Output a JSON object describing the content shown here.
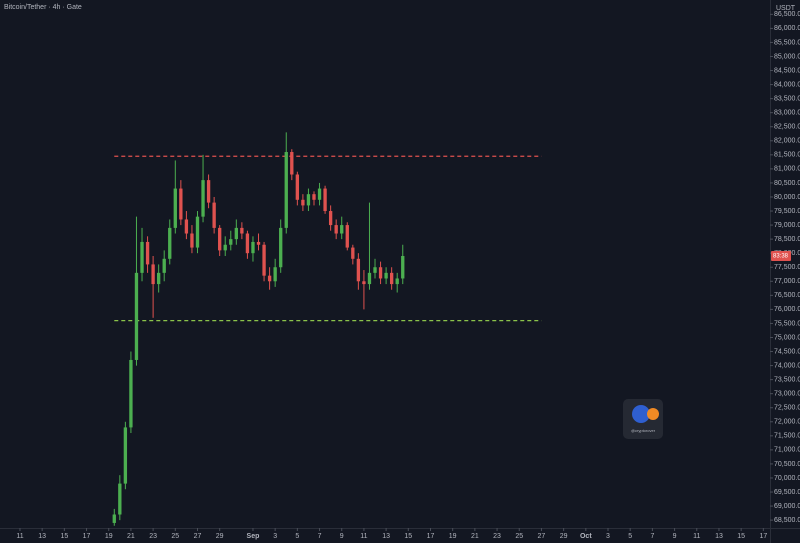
{
  "chart_data": {
    "type": "candlestick",
    "title": "Bitcoin/Tether · 4h · Gate",
    "y_axis_unit": "USDT",
    "price_tag": "83:38",
    "watermark": "@cryptorover",
    "up_color": "#4caf50",
    "down_color": "#e0524f",
    "x": [
      19.5,
      20,
      20.5,
      21,
      21.5,
      22,
      22.5,
      23,
      23.5,
      24,
      24.5,
      25,
      25.5,
      26,
      26.5,
      27,
      27.5,
      28,
      28.5,
      29,
      29.5,
      30,
      30.5,
      31,
      31.5,
      32,
      32.5,
      33,
      33.5,
      34,
      34.5,
      35,
      35.5,
      36,
      36.5,
      37,
      37.5,
      38,
      38.5,
      39,
      39.5,
      40,
      40.5,
      41,
      41.5,
      42,
      42.5,
      43,
      43.5,
      44,
      44.5,
      45,
      45.5
    ],
    "open": [
      68400,
      68700,
      69800,
      71800,
      74200,
      77300,
      78400,
      77600,
      76900,
      77300,
      77800,
      78900,
      80300,
      79200,
      78700,
      78200,
      79300,
      80600,
      79800,
      78900,
      78100,
      78300,
      78500,
      78900,
      78700,
      78000,
      78400,
      78300,
      77200,
      77000,
      77500,
      78900,
      81600,
      80800,
      79900,
      79700,
      80100,
      79900,
      80300,
      79500,
      79000,
      78700,
      79000,
      78200,
      77800,
      77000,
      76900,
      77300,
      77500,
      77100,
      77300,
      76900,
      77100
    ],
    "high": [
      68900,
      70100,
      72000,
      74500,
      79300,
      78900,
      78600,
      77900,
      77600,
      78100,
      79200,
      81300,
      80600,
      79500,
      79000,
      79500,
      81500,
      80800,
      80000,
      79000,
      78600,
      78800,
      79200,
      79100,
      78800,
      78600,
      78700,
      78400,
      77500,
      77800,
      79200,
      82300,
      81700,
      80900,
      80100,
      80300,
      80200,
      80500,
      80400,
      79700,
      79200,
      79300,
      79100,
      78300,
      78000,
      77400,
      79800,
      77800,
      77700,
      77500,
      77500,
      77300,
      78300
    ],
    "low": [
      68300,
      68500,
      69600,
      71600,
      74000,
      77000,
      77300,
      75700,
      76600,
      77000,
      77600,
      78700,
      79000,
      78500,
      78000,
      78000,
      79100,
      79600,
      78700,
      77900,
      77900,
      78100,
      78300,
      78500,
      77800,
      77700,
      78100,
      77000,
      76700,
      76800,
      77300,
      78700,
      80600,
      79700,
      79500,
      79500,
      79700,
      79700,
      79400,
      78800,
      78500,
      78500,
      78100,
      77600,
      76700,
      76000,
      76700,
      77100,
      76900,
      76900,
      76700,
      76600,
      76900
    ],
    "close": [
      68700,
      69800,
      71800,
      74200,
      77300,
      78400,
      77600,
      76900,
      77300,
      77800,
      78900,
      80300,
      79200,
      78700,
      78200,
      79300,
      80600,
      79800,
      78900,
      78100,
      78300,
      78500,
      78900,
      78700,
      78000,
      78400,
      78300,
      77200,
      77000,
      77500,
      78900,
      81600,
      80800,
      79900,
      79700,
      80100,
      79900,
      80300,
      79500,
      79000,
      78700,
      79000,
      78200,
      77800,
      77000,
      76900,
      77300,
      77500,
      77100,
      77300,
      76900,
      77100,
      77900
    ],
    "levels": [
      {
        "value": 81450,
        "color": "#e0524f",
        "x_range": [
          19.5,
          58
        ]
      },
      {
        "value": 75600,
        "color": "#8bc34a",
        "x_range": [
          19.5,
          58
        ]
      }
    ],
    "xlim": [
      9.2,
      78.6
    ],
    "xticks": [
      {
        "value": 11,
        "label": "11"
      },
      {
        "value": 13,
        "label": "13"
      },
      {
        "value": 15,
        "label": "15"
      },
      {
        "value": 17,
        "label": "17"
      },
      {
        "value": 19,
        "label": "19"
      },
      {
        "value": 21,
        "label": "21"
      },
      {
        "value": 23,
        "label": "23"
      },
      {
        "value": 25,
        "label": "25"
      },
      {
        "value": 27,
        "label": "27"
      },
      {
        "value": 29,
        "label": "29"
      },
      {
        "value": 32,
        "label": "Sep"
      },
      {
        "value": 34,
        "label": "3"
      },
      {
        "value": 36,
        "label": "5"
      },
      {
        "value": 38,
        "label": "7"
      },
      {
        "value": 40,
        "label": "9"
      },
      {
        "value": 42,
        "label": "11"
      },
      {
        "value": 44,
        "label": "13"
      },
      {
        "value": 46,
        "label": "15"
      },
      {
        "value": 48,
        "label": "17"
      },
      {
        "value": 50,
        "label": "19"
      },
      {
        "value": 52,
        "label": "21"
      },
      {
        "value": 54,
        "label": "23"
      },
      {
        "value": 56,
        "label": "25"
      },
      {
        "value": 58,
        "label": "27"
      },
      {
        "value": 60,
        "label": "29"
      },
      {
        "value": 62,
        "label": "Oct"
      },
      {
        "value": 64,
        "label": "3"
      },
      {
        "value": 66,
        "label": "5"
      },
      {
        "value": 68,
        "label": "7"
      },
      {
        "value": 70,
        "label": "9"
      },
      {
        "value": 72,
        "label": "11"
      },
      {
        "value": 74,
        "label": "13"
      },
      {
        "value": 76,
        "label": "15"
      },
      {
        "value": 78,
        "label": "17"
      }
    ],
    "ylim": [
      68220,
      87010
    ],
    "yticks": [
      {
        "value": 68500,
        "label": "68,500.0"
      },
      {
        "value": 69000,
        "label": "69,000.0"
      },
      {
        "value": 69500,
        "label": "69,500.0"
      },
      {
        "value": 70000,
        "label": "70,000.0"
      },
      {
        "value": 70500,
        "label": "70,500.0"
      },
      {
        "value": 71000,
        "label": "71,000.0"
      },
      {
        "value": 71500,
        "label": "71,500.0"
      },
      {
        "value": 72000,
        "label": "72,000.0"
      },
      {
        "value": 72500,
        "label": "72,500.0"
      },
      {
        "value": 73000,
        "label": "73,000.0"
      },
      {
        "value": 73500,
        "label": "73,500.0"
      },
      {
        "value": 74000,
        "label": "74,000.0"
      },
      {
        "value": 74500,
        "label": "74,500.0"
      },
      {
        "value": 75000,
        "label": "75,000.0"
      },
      {
        "value": 75500,
        "label": "75,500.0"
      },
      {
        "value": 76000,
        "label": "76,000.0"
      },
      {
        "value": 76500,
        "label": "76,500.0"
      },
      {
        "value": 77000,
        "label": "77,000.0"
      },
      {
        "value": 77500,
        "label": "77,500.0"
      },
      {
        "value": 78000,
        "label": "78,000.0"
      },
      {
        "value": 78500,
        "label": "78,500.0"
      },
      {
        "value": 79000,
        "label": "79,000.0"
      },
      {
        "value": 79500,
        "label": "79,500.0"
      },
      {
        "value": 80000,
        "label": "80,000.0"
      },
      {
        "value": 80500,
        "label": "80,500.0"
      },
      {
        "value": 81000,
        "label": "81,000.0"
      },
      {
        "value": 81500,
        "label": "81,500.0"
      },
      {
        "value": 82000,
        "label": "82,000.0"
      },
      {
        "value": 82500,
        "label": "82,500.0"
      },
      {
        "value": 83000,
        "label": "83,000.0"
      },
      {
        "value": 83500,
        "label": "83,500.0"
      },
      {
        "value": 84000,
        "label": "84,000.0"
      },
      {
        "value": 84500,
        "label": "84,500.0"
      },
      {
        "value": 85000,
        "label": "85,000.0"
      },
      {
        "value": 85500,
        "label": "85,500.0"
      },
      {
        "value": 86000,
        "label": "86,000.0"
      },
      {
        "value": 86500,
        "label": "86,500.0"
      }
    ]
  }
}
